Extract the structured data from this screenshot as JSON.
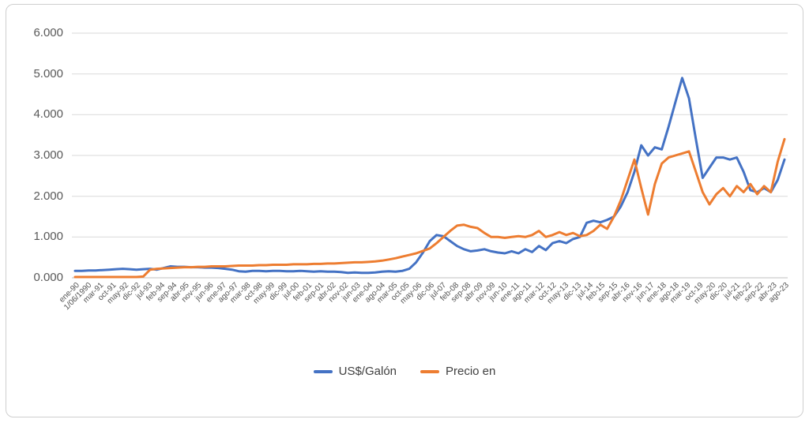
{
  "page": {
    "background": "#ffffff",
    "panel_border": "#cfcfcf"
  },
  "chart_data": {
    "type": "line",
    "title": "",
    "xlabel": "",
    "ylabel": "",
    "ylim": [
      0,
      6
    ],
    "grid": "horizontal",
    "legend_position": "bottom",
    "yticks": [
      0,
      1,
      2,
      3,
      4,
      5,
      6
    ],
    "ytick_labels": [
      "0.000",
      "1.000",
      "2.000",
      "3.000",
      "4.000",
      "5.000",
      "6.000"
    ],
    "x_labels": [
      "ene-90",
      "1/06/1990",
      "mar-91",
      "oct-91",
      "may-92",
      "dic-92",
      "jul-93",
      "feb-94",
      "sep-94",
      "abr-95",
      "nov-95",
      "jun-96",
      "ene-97",
      "ago-97",
      "mar-98",
      "oct-98",
      "may-99",
      "dic-99",
      "jul-00",
      "feb-01",
      "sep-01",
      "abr-02",
      "nov-02",
      "jun-03",
      "ene-04",
      "ago-04",
      "mar-05",
      "oct-05",
      "may-06",
      "dic-06",
      "jul-07",
      "feb-08",
      "sep-08",
      "abr-09",
      "nov-09",
      "jun-10",
      "ene-11",
      "ago-11",
      "mar-12",
      "oct-12",
      "may-13",
      "dic-13",
      "jul-14",
      "feb-15",
      "sep-15",
      "abr-16",
      "nov-16",
      "jun-17",
      "ene-18",
      "ago-18",
      "mar-19",
      "oct-19",
      "may-20",
      "dic-20",
      "jul-21",
      "feb-22",
      "sep-22",
      "abr-23",
      "ago-23"
    ],
    "series": [
      {
        "name": "US$/Galón",
        "color": "#4472C4",
        "values": [
          0.17,
          0.17,
          0.18,
          0.18,
          0.19,
          0.2,
          0.21,
          0.22,
          0.21,
          0.2,
          0.21,
          0.22,
          0.2,
          0.24,
          0.28,
          0.27,
          0.27,
          0.26,
          0.26,
          0.25,
          0.25,
          0.24,
          0.22,
          0.2,
          0.16,
          0.15,
          0.17,
          0.17,
          0.16,
          0.17,
          0.17,
          0.16,
          0.16,
          0.17,
          0.16,
          0.15,
          0.16,
          0.15,
          0.15,
          0.14,
          0.12,
          0.13,
          0.12,
          0.12,
          0.13,
          0.15,
          0.16,
          0.15,
          0.17,
          0.22,
          0.38,
          0.62,
          0.9,
          1.05,
          1.02,
          0.9,
          0.78,
          0.7,
          0.65,
          0.67,
          0.7,
          0.65,
          0.62,
          0.6,
          0.65,
          0.6,
          0.7,
          0.63,
          0.78,
          0.68,
          0.85,
          0.9,
          0.85,
          0.95,
          1.0,
          1.35,
          1.4,
          1.36,
          1.42,
          1.5,
          1.75,
          2.1,
          2.6,
          3.25,
          3.0,
          3.2,
          3.15,
          3.7,
          4.3,
          4.9,
          4.4,
          3.4,
          2.45,
          2.7,
          2.95,
          2.95,
          2.9,
          2.95,
          2.6,
          2.15,
          2.1,
          2.2,
          2.1,
          2.4,
          2.9
        ]
      },
      {
        "name": "Precio en",
        "color": "#ED7D31",
        "values": [
          0.02,
          0.02,
          0.02,
          0.02,
          0.02,
          0.02,
          0.02,
          0.02,
          0.02,
          0.02,
          0.03,
          0.2,
          0.22,
          0.23,
          0.24,
          0.25,
          0.26,
          0.26,
          0.27,
          0.27,
          0.28,
          0.28,
          0.28,
          0.29,
          0.3,
          0.3,
          0.3,
          0.31,
          0.31,
          0.32,
          0.32,
          0.32,
          0.33,
          0.33,
          0.33,
          0.34,
          0.34,
          0.35,
          0.35,
          0.36,
          0.37,
          0.38,
          0.38,
          0.39,
          0.4,
          0.42,
          0.45,
          0.48,
          0.52,
          0.56,
          0.6,
          0.66,
          0.72,
          0.85,
          1.0,
          1.15,
          1.28,
          1.3,
          1.25,
          1.22,
          1.1,
          1.0,
          1.0,
          0.98,
          1.0,
          1.02,
          1.0,
          1.05,
          1.15,
          1.0,
          1.05,
          1.12,
          1.05,
          1.1,
          1.02,
          1.05,
          1.15,
          1.3,
          1.2,
          1.5,
          1.9,
          2.4,
          2.9,
          2.2,
          1.55,
          2.3,
          2.8,
          2.95,
          3.0,
          3.05,
          3.1,
          2.6,
          2.1,
          1.8,
          2.05,
          2.2,
          2.0,
          2.25,
          2.1,
          2.3,
          2.05,
          2.25,
          2.1,
          2.85,
          3.4
        ]
      }
    ]
  }
}
